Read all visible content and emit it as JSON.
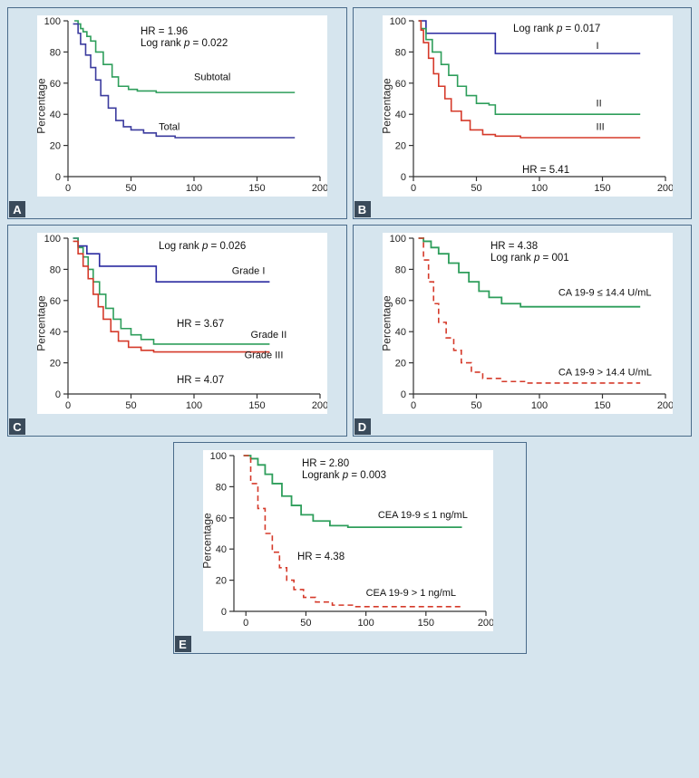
{
  "layout": {
    "background_color": "#d6e5ee",
    "panel_border": "#4a6b8a",
    "plot_bg": "#ffffff"
  },
  "panelA": {
    "letter": "A",
    "ylabel": "Percentage",
    "stats": [
      "HR = 1.96",
      "Log rank p = 0.022"
    ],
    "stats_xy": [
      [
        80,
        15
      ],
      [
        80,
        28
      ]
    ],
    "xlim": [
      0,
      200
    ],
    "xticks": [
      0,
      50,
      100,
      150,
      200
    ],
    "ylim": [
      0,
      100
    ],
    "yticks": [
      0,
      20,
      40,
      60,
      80,
      100
    ],
    "series": [
      {
        "name": "Subtotal",
        "color": "#2e9e5b",
        "width": 1.6,
        "dash": "",
        "label": "Subtotal",
        "label_xy": [
          100,
          62
        ],
        "data": [
          [
            5,
            100
          ],
          [
            8,
            98
          ],
          [
            10,
            95
          ],
          [
            12,
            93
          ],
          [
            15,
            90
          ],
          [
            18,
            87
          ],
          [
            22,
            80
          ],
          [
            28,
            72
          ],
          [
            35,
            64
          ],
          [
            40,
            58
          ],
          [
            48,
            56
          ],
          [
            55,
            55
          ],
          [
            70,
            54
          ],
          [
            90,
            54
          ],
          [
            180,
            54
          ]
        ]
      },
      {
        "name": "Total",
        "color": "#3b3b9e",
        "width": 1.6,
        "dash": "",
        "label": "Total",
        "label_xy": [
          72,
          30
        ],
        "data": [
          [
            4,
            98
          ],
          [
            8,
            92
          ],
          [
            10,
            85
          ],
          [
            14,
            78
          ],
          [
            18,
            70
          ],
          [
            22,
            62
          ],
          [
            26,
            52
          ],
          [
            32,
            44
          ],
          [
            38,
            36
          ],
          [
            44,
            32
          ],
          [
            50,
            30
          ],
          [
            60,
            28
          ],
          [
            70,
            26
          ],
          [
            85,
            25
          ],
          [
            180,
            25
          ]
        ]
      }
    ]
  },
  "panelB": {
    "letter": "B",
    "ylabel": "Percentage",
    "stats": [
      "Log rank p = 0.017",
      "HR = 5.41"
    ],
    "stats_xy": [
      [
        110,
        12
      ],
      [
        120,
        168
      ]
    ],
    "xlim": [
      0,
      200
    ],
    "xticks": [
      0,
      50,
      100,
      150,
      200
    ],
    "ylim": [
      0,
      100
    ],
    "yticks": [
      0,
      20,
      40,
      60,
      80,
      100
    ],
    "series": [
      {
        "name": "I",
        "color": "#2a2aa0",
        "width": 1.6,
        "dash": "",
        "label": "I",
        "label_xy": [
          145,
          82
        ],
        "data": [
          [
            4,
            100
          ],
          [
            10,
            92
          ],
          [
            30,
            92
          ],
          [
            60,
            92
          ],
          [
            65,
            79
          ],
          [
            180,
            79
          ]
        ]
      },
      {
        "name": "II",
        "color": "#2e9e5b",
        "width": 1.6,
        "dash": "",
        "label": "II",
        "label_xy": [
          145,
          45
        ],
        "data": [
          [
            4,
            100
          ],
          [
            6,
            95
          ],
          [
            10,
            88
          ],
          [
            15,
            80
          ],
          [
            22,
            72
          ],
          [
            28,
            65
          ],
          [
            35,
            58
          ],
          [
            42,
            52
          ],
          [
            50,
            47
          ],
          [
            60,
            46
          ],
          [
            65,
            40
          ],
          [
            180,
            40
          ]
        ]
      },
      {
        "name": "III",
        "color": "#d53a2a",
        "width": 1.6,
        "dash": "",
        "label": "III",
        "label_xy": [
          145,
          30
        ],
        "data": [
          [
            4,
            100
          ],
          [
            6,
            94
          ],
          [
            8,
            86
          ],
          [
            12,
            76
          ],
          [
            16,
            66
          ],
          [
            20,
            58
          ],
          [
            25,
            50
          ],
          [
            30,
            42
          ],
          [
            38,
            36
          ],
          [
            45,
            30
          ],
          [
            55,
            27
          ],
          [
            65,
            26
          ],
          [
            85,
            25
          ],
          [
            180,
            25
          ]
        ]
      }
    ]
  },
  "panelC": {
    "letter": "C",
    "ylabel": "Percentage",
    "stats": [
      "Log rank p = 0.026",
      "HR = 3.67",
      "HR = 4.07"
    ],
    "stats_xy": [
      [
        100,
        12
      ],
      [
        120,
        98
      ],
      [
        120,
        160
      ]
    ],
    "xlim": [
      0,
      200
    ],
    "xticks": [
      0,
      50,
      100,
      150,
      200
    ],
    "ylim": [
      0,
      100
    ],
    "yticks": [
      0,
      20,
      40,
      60,
      80,
      100
    ],
    "series": [
      {
        "name": "Grade I",
        "color": "#2a2aa0",
        "width": 1.6,
        "dash": "",
        "label": "Grade I",
        "label_xy": [
          130,
          77
        ],
        "data": [
          [
            4,
            100
          ],
          [
            8,
            95
          ],
          [
            15,
            90
          ],
          [
            25,
            82
          ],
          [
            45,
            82
          ],
          [
            60,
            82
          ],
          [
            70,
            72
          ],
          [
            160,
            72
          ]
        ]
      },
      {
        "name": "Grade II",
        "color": "#2e9e5b",
        "width": 1.6,
        "dash": "",
        "label": "Grade II",
        "label_xy": [
          145,
          36
        ],
        "data": [
          [
            4,
            100
          ],
          [
            8,
            94
          ],
          [
            12,
            88
          ],
          [
            16,
            80
          ],
          [
            20,
            72
          ],
          [
            25,
            64
          ],
          [
            30,
            55
          ],
          [
            36,
            48
          ],
          [
            42,
            42
          ],
          [
            50,
            38
          ],
          [
            58,
            35
          ],
          [
            68,
            32
          ],
          [
            160,
            32
          ]
        ]
      },
      {
        "name": "Grade III",
        "color": "#d53a2a",
        "width": 1.6,
        "dash": "",
        "label": "Grade III",
        "label_xy": [
          140,
          23
        ],
        "data": [
          [
            4,
            98
          ],
          [
            8,
            90
          ],
          [
            12,
            82
          ],
          [
            16,
            74
          ],
          [
            20,
            64
          ],
          [
            24,
            56
          ],
          [
            28,
            48
          ],
          [
            34,
            40
          ],
          [
            40,
            34
          ],
          [
            48,
            30
          ],
          [
            58,
            28
          ],
          [
            68,
            27
          ],
          [
            160,
            27
          ]
        ]
      }
    ]
  },
  "panelD": {
    "letter": "D",
    "ylabel": "Percentage",
    "stats": [
      "HR = 4.38",
      "Log rank p = 001"
    ],
    "stats_xy": [
      [
        85,
        12
      ],
      [
        85,
        25
      ]
    ],
    "xlim": [
      0,
      200
    ],
    "xticks": [
      0,
      50,
      100,
      150,
      200
    ],
    "ylim": [
      0,
      100
    ],
    "yticks": [
      0,
      20,
      40,
      60,
      80,
      100
    ],
    "series": [
      {
        "name": "CA199-low",
        "color": "#2e9e5b",
        "width": 1.8,
        "dash": "",
        "label": "CA 19-9 ≤ 14.4 U/mL",
        "label_xy": [
          115,
          63
        ],
        "data": [
          [
            4,
            100
          ],
          [
            8,
            98
          ],
          [
            14,
            94
          ],
          [
            20,
            90
          ],
          [
            28,
            84
          ],
          [
            36,
            78
          ],
          [
            44,
            72
          ],
          [
            52,
            66
          ],
          [
            60,
            62
          ],
          [
            70,
            58
          ],
          [
            85,
            56
          ],
          [
            180,
            56
          ]
        ]
      },
      {
        "name": "CA199-high",
        "color": "#d53a2a",
        "width": 1.6,
        "dash": "6 4",
        "label": "CA 19-9 > 14.4 U/mL",
        "label_xy": [
          115,
          12
        ],
        "data": [
          [
            4,
            100
          ],
          [
            8,
            86
          ],
          [
            12,
            72
          ],
          [
            16,
            58
          ],
          [
            20,
            46
          ],
          [
            26,
            36
          ],
          [
            32,
            28
          ],
          [
            38,
            20
          ],
          [
            46,
            14
          ],
          [
            55,
            10
          ],
          [
            70,
            8
          ],
          [
            90,
            7
          ],
          [
            180,
            7
          ]
        ]
      }
    ]
  },
  "panelE": {
    "letter": "E",
    "ylabel": "Percentage",
    "stats": [
      "HR = 2.80",
      "Logrank p = 0.003",
      "HR = 4.38"
    ],
    "stats_xy": [
      [
        75,
        12
      ],
      [
        75,
        25
      ],
      [
        70,
        115
      ]
    ],
    "xlim": [
      -10,
      200
    ],
    "xticks": [
      0,
      50,
      100,
      150,
      200
    ],
    "ylim": [
      0,
      100
    ],
    "yticks": [
      0,
      20,
      40,
      60,
      80,
      100
    ],
    "series": [
      {
        "name": "CEA-low",
        "color": "#2e9e5b",
        "width": 1.8,
        "dash": "",
        "label": "CEA 19-9 ≤ 1 ng/mL",
        "label_xy": [
          110,
          60
        ],
        "data": [
          [
            -2,
            100
          ],
          [
            4,
            98
          ],
          [
            10,
            94
          ],
          [
            16,
            88
          ],
          [
            22,
            82
          ],
          [
            30,
            74
          ],
          [
            38,
            68
          ],
          [
            46,
            62
          ],
          [
            56,
            58
          ],
          [
            70,
            55
          ],
          [
            85,
            54
          ],
          [
            120,
            54
          ],
          [
            180,
            54
          ]
        ]
      },
      {
        "name": "CEA-high",
        "color": "#d53a2a",
        "width": 1.6,
        "dash": "6 4",
        "label": "CEA 19-9 > 1 ng/mL",
        "label_xy": [
          100,
          10
        ],
        "data": [
          [
            -2,
            100
          ],
          [
            4,
            82
          ],
          [
            10,
            66
          ],
          [
            16,
            50
          ],
          [
            22,
            38
          ],
          [
            28,
            28
          ],
          [
            34,
            20
          ],
          [
            40,
            14
          ],
          [
            48,
            9
          ],
          [
            58,
            6
          ],
          [
            72,
            4
          ],
          [
            90,
            3
          ],
          [
            180,
            3
          ]
        ]
      }
    ]
  }
}
